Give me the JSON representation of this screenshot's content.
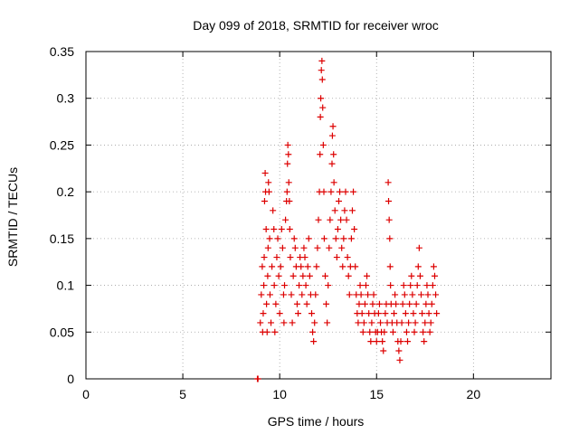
{
  "chart_data": {
    "type": "scatter",
    "title": "Day 099 of 2018, SRMTID for receiver wroc",
    "xlabel": "GPS time / hours",
    "ylabel": "SRMTID / TECUs",
    "xlim": [
      0,
      24
    ],
    "ylim": [
      0,
      0.35
    ],
    "xticks": [
      0,
      5,
      10,
      15,
      20
    ],
    "xtick_labels": [
      "0",
      "5",
      "10",
      "15",
      "20"
    ],
    "yticks": [
      0,
      0.05,
      0.1,
      0.15,
      0.2,
      0.25,
      0.3,
      0.35
    ],
    "ytick_labels": [
      "0",
      "0.05",
      "0.1",
      "0.15",
      "0.2",
      "0.25",
      "0.3",
      "0.35"
    ],
    "grid": true,
    "marker": "+",
    "series": [
      {
        "name": "SRMTID",
        "color": "#dd0000",
        "points": [
          [
            8.85,
            0.0
          ],
          [
            8.88,
            0.0
          ],
          [
            9.0,
            0.06
          ],
          [
            9.05,
            0.09
          ],
          [
            9.1,
            0.12
          ],
          [
            9.12,
            0.05
          ],
          [
            9.15,
            0.07
          ],
          [
            9.18,
            0.1
          ],
          [
            9.2,
            0.13
          ],
          [
            9.22,
            0.19
          ],
          [
            9.25,
            0.22
          ],
          [
            9.27,
            0.2
          ],
          [
            9.3,
            0.16
          ],
          [
            9.32,
            0.08
          ],
          [
            9.35,
            0.05
          ],
          [
            9.38,
            0.11
          ],
          [
            9.4,
            0.14
          ],
          [
            9.42,
            0.21
          ],
          [
            9.45,
            0.2
          ],
          [
            9.48,
            0.15
          ],
          [
            9.5,
            0.09
          ],
          [
            9.55,
            0.06
          ],
          [
            9.6,
            0.12
          ],
          [
            9.65,
            0.18
          ],
          [
            9.7,
            0.16
          ],
          [
            9.72,
            0.1
          ],
          [
            9.75,
            0.05
          ],
          [
            9.8,
            0.08
          ],
          [
            9.85,
            0.13
          ],
          [
            9.9,
            0.15
          ],
          [
            9.95,
            0.11
          ],
          [
            10.0,
            0.07
          ],
          [
            10.05,
            0.12
          ],
          [
            10.1,
            0.16
          ],
          [
            10.15,
            0.14
          ],
          [
            10.2,
            0.09
          ],
          [
            10.22,
            0.06
          ],
          [
            10.25,
            0.1
          ],
          [
            10.3,
            0.17
          ],
          [
            10.35,
            0.19
          ],
          [
            10.38,
            0.2
          ],
          [
            10.4,
            0.23
          ],
          [
            10.42,
            0.25
          ],
          [
            10.45,
            0.24
          ],
          [
            10.47,
            0.21
          ],
          [
            10.5,
            0.19
          ],
          [
            10.52,
            0.16
          ],
          [
            10.55,
            0.13
          ],
          [
            10.6,
            0.09
          ],
          [
            10.65,
            0.06
          ],
          [
            10.7,
            0.11
          ],
          [
            10.75,
            0.15
          ],
          [
            10.8,
            0.14
          ],
          [
            10.85,
            0.12
          ],
          [
            10.9,
            0.08
          ],
          [
            10.95,
            0.07
          ],
          [
            11.0,
            0.1
          ],
          [
            11.05,
            0.13
          ],
          [
            11.1,
            0.12
          ],
          [
            11.15,
            0.09
          ],
          [
            11.2,
            0.11
          ],
          [
            11.25,
            0.14
          ],
          [
            11.3,
            0.13
          ],
          [
            11.35,
            0.1
          ],
          [
            11.4,
            0.08
          ],
          [
            11.45,
            0.12
          ],
          [
            11.5,
            0.15
          ],
          [
            11.55,
            0.11
          ],
          [
            11.6,
            0.09
          ],
          [
            11.65,
            0.07
          ],
          [
            11.7,
            0.05
          ],
          [
            11.75,
            0.04
          ],
          [
            11.8,
            0.06
          ],
          [
            11.85,
            0.09
          ],
          [
            11.9,
            0.12
          ],
          [
            11.95,
            0.14
          ],
          [
            12.0,
            0.17
          ],
          [
            12.05,
            0.2
          ],
          [
            12.08,
            0.24
          ],
          [
            12.1,
            0.28
          ],
          [
            12.12,
            0.3
          ],
          [
            12.15,
            0.33
          ],
          [
            12.18,
            0.34
          ],
          [
            12.2,
            0.32
          ],
          [
            12.22,
            0.29
          ],
          [
            12.25,
            0.25
          ],
          [
            12.28,
            0.2
          ],
          [
            12.3,
            0.15
          ],
          [
            12.35,
            0.11
          ],
          [
            12.4,
            0.08
          ],
          [
            12.45,
            0.06
          ],
          [
            12.5,
            0.1
          ],
          [
            12.55,
            0.14
          ],
          [
            12.6,
            0.17
          ],
          [
            12.65,
            0.2
          ],
          [
            12.7,
            0.23
          ],
          [
            12.72,
            0.26
          ],
          [
            12.75,
            0.27
          ],
          [
            12.78,
            0.24
          ],
          [
            12.8,
            0.21
          ],
          [
            12.85,
            0.18
          ],
          [
            12.9,
            0.15
          ],
          [
            12.95,
            0.13
          ],
          [
            13.0,
            0.16
          ],
          [
            13.05,
            0.19
          ],
          [
            13.1,
            0.2
          ],
          [
            13.15,
            0.17
          ],
          [
            13.2,
            0.14
          ],
          [
            13.25,
            0.12
          ],
          [
            13.3,
            0.15
          ],
          [
            13.35,
            0.18
          ],
          [
            13.4,
            0.2
          ],
          [
            13.45,
            0.17
          ],
          [
            13.5,
            0.13
          ],
          [
            13.55,
            0.11
          ],
          [
            13.6,
            0.09
          ],
          [
            13.65,
            0.12
          ],
          [
            13.7,
            0.15
          ],
          [
            13.75,
            0.18
          ],
          [
            13.8,
            0.2
          ],
          [
            13.85,
            0.16
          ],
          [
            13.9,
            0.12
          ],
          [
            13.95,
            0.09
          ],
          [
            14.0,
            0.07
          ],
          [
            14.05,
            0.06
          ],
          [
            14.1,
            0.08
          ],
          [
            14.15,
            0.1
          ],
          [
            14.2,
            0.09
          ],
          [
            14.25,
            0.07
          ],
          [
            14.3,
            0.05
          ],
          [
            14.35,
            0.06
          ],
          [
            14.4,
            0.08
          ],
          [
            14.45,
            0.1
          ],
          [
            14.5,
            0.11
          ],
          [
            14.55,
            0.09
          ],
          [
            14.6,
            0.07
          ],
          [
            14.65,
            0.05
          ],
          [
            14.7,
            0.04
          ],
          [
            14.75,
            0.06
          ],
          [
            14.8,
            0.08
          ],
          [
            14.85,
            0.09
          ],
          [
            14.9,
            0.07
          ],
          [
            14.95,
            0.05
          ],
          [
            15.0,
            0.04
          ],
          [
            15.05,
            0.05
          ],
          [
            15.1,
            0.07
          ],
          [
            15.15,
            0.08
          ],
          [
            15.2,
            0.06
          ],
          [
            15.25,
            0.05
          ],
          [
            15.3,
            0.04
          ],
          [
            15.35,
            0.03
          ],
          [
            15.4,
            0.05
          ],
          [
            15.45,
            0.07
          ],
          [
            15.5,
            0.08
          ],
          [
            15.55,
            0.06
          ],
          [
            15.6,
            0.21
          ],
          [
            15.62,
            0.19
          ],
          [
            15.65,
            0.17
          ],
          [
            15.68,
            0.15
          ],
          [
            15.7,
            0.12
          ],
          [
            15.72,
            0.1
          ],
          [
            15.75,
            0.08
          ],
          [
            15.8,
            0.06
          ],
          [
            15.85,
            0.05
          ],
          [
            15.9,
            0.07
          ],
          [
            15.95,
            0.09
          ],
          [
            16.0,
            0.08
          ],
          [
            16.05,
            0.06
          ],
          [
            16.1,
            0.04
          ],
          [
            16.15,
            0.03
          ],
          [
            16.2,
            0.02
          ],
          [
            16.25,
            0.04
          ],
          [
            16.3,
            0.06
          ],
          [
            16.35,
            0.08
          ],
          [
            16.4,
            0.1
          ],
          [
            16.45,
            0.09
          ],
          [
            16.5,
            0.07
          ],
          [
            16.55,
            0.05
          ],
          [
            16.6,
            0.04
          ],
          [
            16.65,
            0.06
          ],
          [
            16.7,
            0.08
          ],
          [
            16.75,
            0.1
          ],
          [
            16.8,
            0.11
          ],
          [
            16.85,
            0.09
          ],
          [
            16.9,
            0.07
          ],
          [
            16.95,
            0.05
          ],
          [
            17.0,
            0.06
          ],
          [
            17.05,
            0.08
          ],
          [
            17.1,
            0.1
          ],
          [
            17.15,
            0.12
          ],
          [
            17.2,
            0.14
          ],
          [
            17.25,
            0.11
          ],
          [
            17.3,
            0.09
          ],
          [
            17.35,
            0.07
          ],
          [
            17.4,
            0.05
          ],
          [
            17.45,
            0.04
          ],
          [
            17.5,
            0.06
          ],
          [
            17.55,
            0.08
          ],
          [
            17.6,
            0.1
          ],
          [
            17.65,
            0.09
          ],
          [
            17.7,
            0.07
          ],
          [
            17.75,
            0.05
          ],
          [
            17.8,
            0.06
          ],
          [
            17.85,
            0.08
          ],
          [
            17.9,
            0.1
          ],
          [
            17.95,
            0.12
          ],
          [
            18.0,
            0.11
          ],
          [
            18.05,
            0.09
          ],
          [
            18.1,
            0.07
          ]
        ]
      }
    ]
  }
}
